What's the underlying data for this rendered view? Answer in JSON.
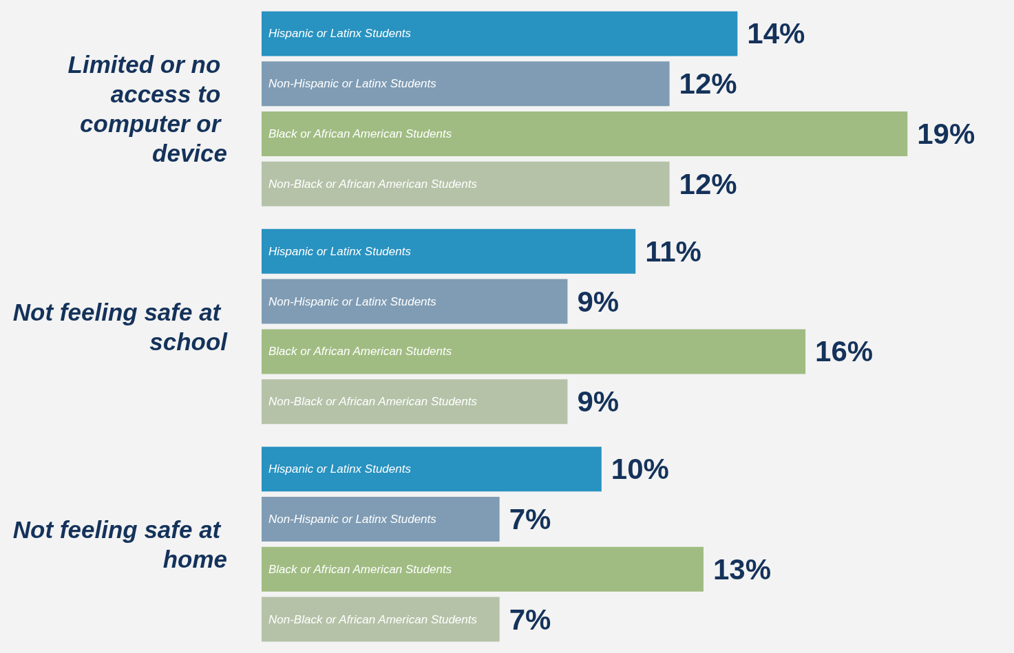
{
  "chart_data": {
    "type": "bar",
    "orientation": "horizontal",
    "categories": [
      "Limited or no access to computer or device",
      "Not feeling safe at school",
      "Not feeling safe at home"
    ],
    "series": [
      {
        "name": "Hispanic or Latinx Students",
        "color": "#2892c0",
        "values": [
          14,
          11,
          10
        ],
        "value_labels": [
          "14%",
          "11%",
          "10%"
        ]
      },
      {
        "name": "Non-Hispanic or Latinx Students",
        "color": "#7f9cb4",
        "values": [
          12,
          9,
          7
        ],
        "value_labels": [
          "12%",
          "9%",
          "7%"
        ]
      },
      {
        "name": "Black or African American Students",
        "color": "#a0bc82",
        "values": [
          19,
          16,
          13
        ],
        "value_labels": [
          "19%",
          "16%",
          "13%"
        ]
      },
      {
        "name": "Non-Black or African American Students",
        "color": "#b5c2a8",
        "values": [
          12,
          9,
          7
        ],
        "value_labels": [
          "12%",
          "9%",
          "7%"
        ]
      }
    ],
    "legend": false
  }
}
